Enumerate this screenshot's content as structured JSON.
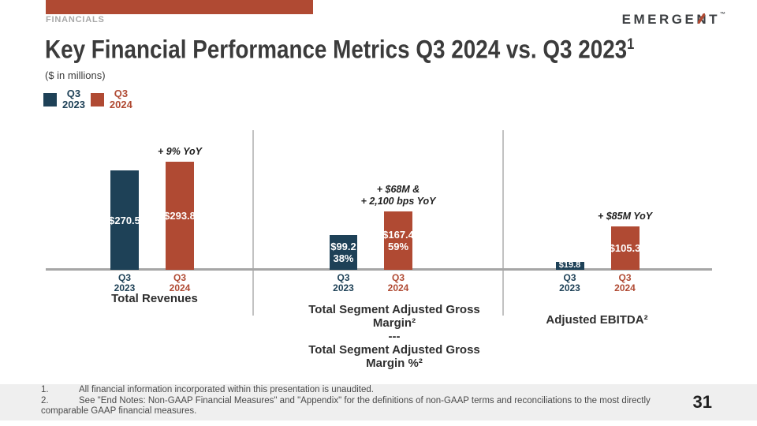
{
  "slide": {
    "kicker": "FINANCIALS",
    "title": "Key Financial Performance Metrics Q3 2024 vs. Q3 2023",
    "title_superscript": "1",
    "subtitle": "($ in millions)",
    "page_number": "31"
  },
  "logo": {
    "text": "EMERGENT",
    "prefix": "EMERGE",
    "n": "N",
    "suffix": "T",
    "tm": "™"
  },
  "colors": {
    "accent_red": "#b04a33",
    "navy_blue": "#1e4157",
    "axis_gray": "#a6a6a6",
    "footer_gray": "#efefef",
    "title_gray": "#3b3b3b"
  },
  "legend": [
    {
      "label_line1": "Q3",
      "label_line2": "2023",
      "color": "#1e4157"
    },
    {
      "label_line1": "Q3",
      "label_line2": "2024",
      "color": "#b04a33"
    }
  ],
  "chart_data": [
    {
      "type": "bar",
      "title": "Total Revenues",
      "categories": [
        "Q3 2023",
        "Q3 2024"
      ],
      "values": [
        270.5,
        293.8
      ],
      "bar_labels": [
        "$270.5",
        "$293.8"
      ],
      "annotation_lines": [
        "+ 9% YoY"
      ],
      "series_colors": [
        "#1e4157",
        "#b04a33"
      ],
      "unit": "$ millions",
      "legend_position": "top-left",
      "grid": false
    },
    {
      "type": "bar",
      "title": "Total Segment Adjusted Gross Margin² --- Total Segment Adjusted Gross Margin %²",
      "title_lines": [
        "Total Segment Adjusted Gross Margin²",
        "---",
        "Total Segment Adjusted Gross Margin %²"
      ],
      "categories": [
        "Q3 2023",
        "Q3 2024"
      ],
      "values": [
        99.2,
        167.4
      ],
      "percent_values": [
        "38%",
        "59%"
      ],
      "bar_labels": [
        [
          "$99.2",
          "38%"
        ],
        [
          "$167.4",
          "59%"
        ]
      ],
      "annotation_lines": [
        "+ $68M &",
        "+ 2,100 bps YoY"
      ],
      "series_colors": [
        "#1e4157",
        "#b04a33"
      ],
      "unit": "$ millions",
      "grid": false
    },
    {
      "type": "bar",
      "title": "Adjusted EBITDA²",
      "categories": [
        "Q3 2023",
        "Q3 2024"
      ],
      "values": [
        19.8,
        105.3
      ],
      "bar_labels": [
        "$19.8",
        "$105.3"
      ],
      "annotation_lines": [
        "+ $85M YoY"
      ],
      "series_colors": [
        "#1e4157",
        "#b04a33"
      ],
      "unit": "$ millions",
      "grid": false
    }
  ],
  "footnotes": [
    {
      "num": "1.",
      "text": "All financial information incorporated within this presentation is unaudited."
    },
    {
      "num": "2.",
      "text": "See \"End Notes: Non-GAAP Financial Measures\" and \"Appendix\" for the definitions of non-GAAP terms and reconciliations to the most directly comparable GAAP financial measures."
    }
  ]
}
